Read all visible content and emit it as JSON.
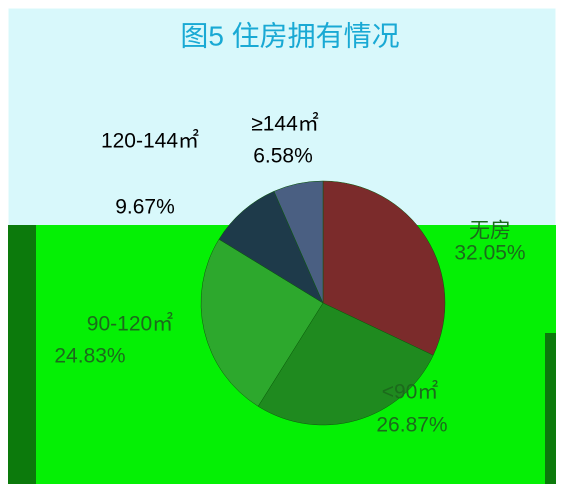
{
  "chart_data": {
    "type": "pie",
    "title": "图5 住房拥有情况",
    "categories": [
      "无房",
      "<90㎡",
      "90-120㎡",
      "120-144㎡",
      "≥144㎡"
    ],
    "values": [
      32.05,
      26.87,
      24.83,
      9.67,
      6.58
    ],
    "value_labels": [
      "32.05%",
      "26.87%",
      "24.83%",
      "9.67%",
      "6.58%"
    ],
    "colors": [
      "#7b2b2b",
      "#1f8a1f",
      "#2da82d",
      "#1e3a4a",
      "#4a5f82"
    ]
  }
}
